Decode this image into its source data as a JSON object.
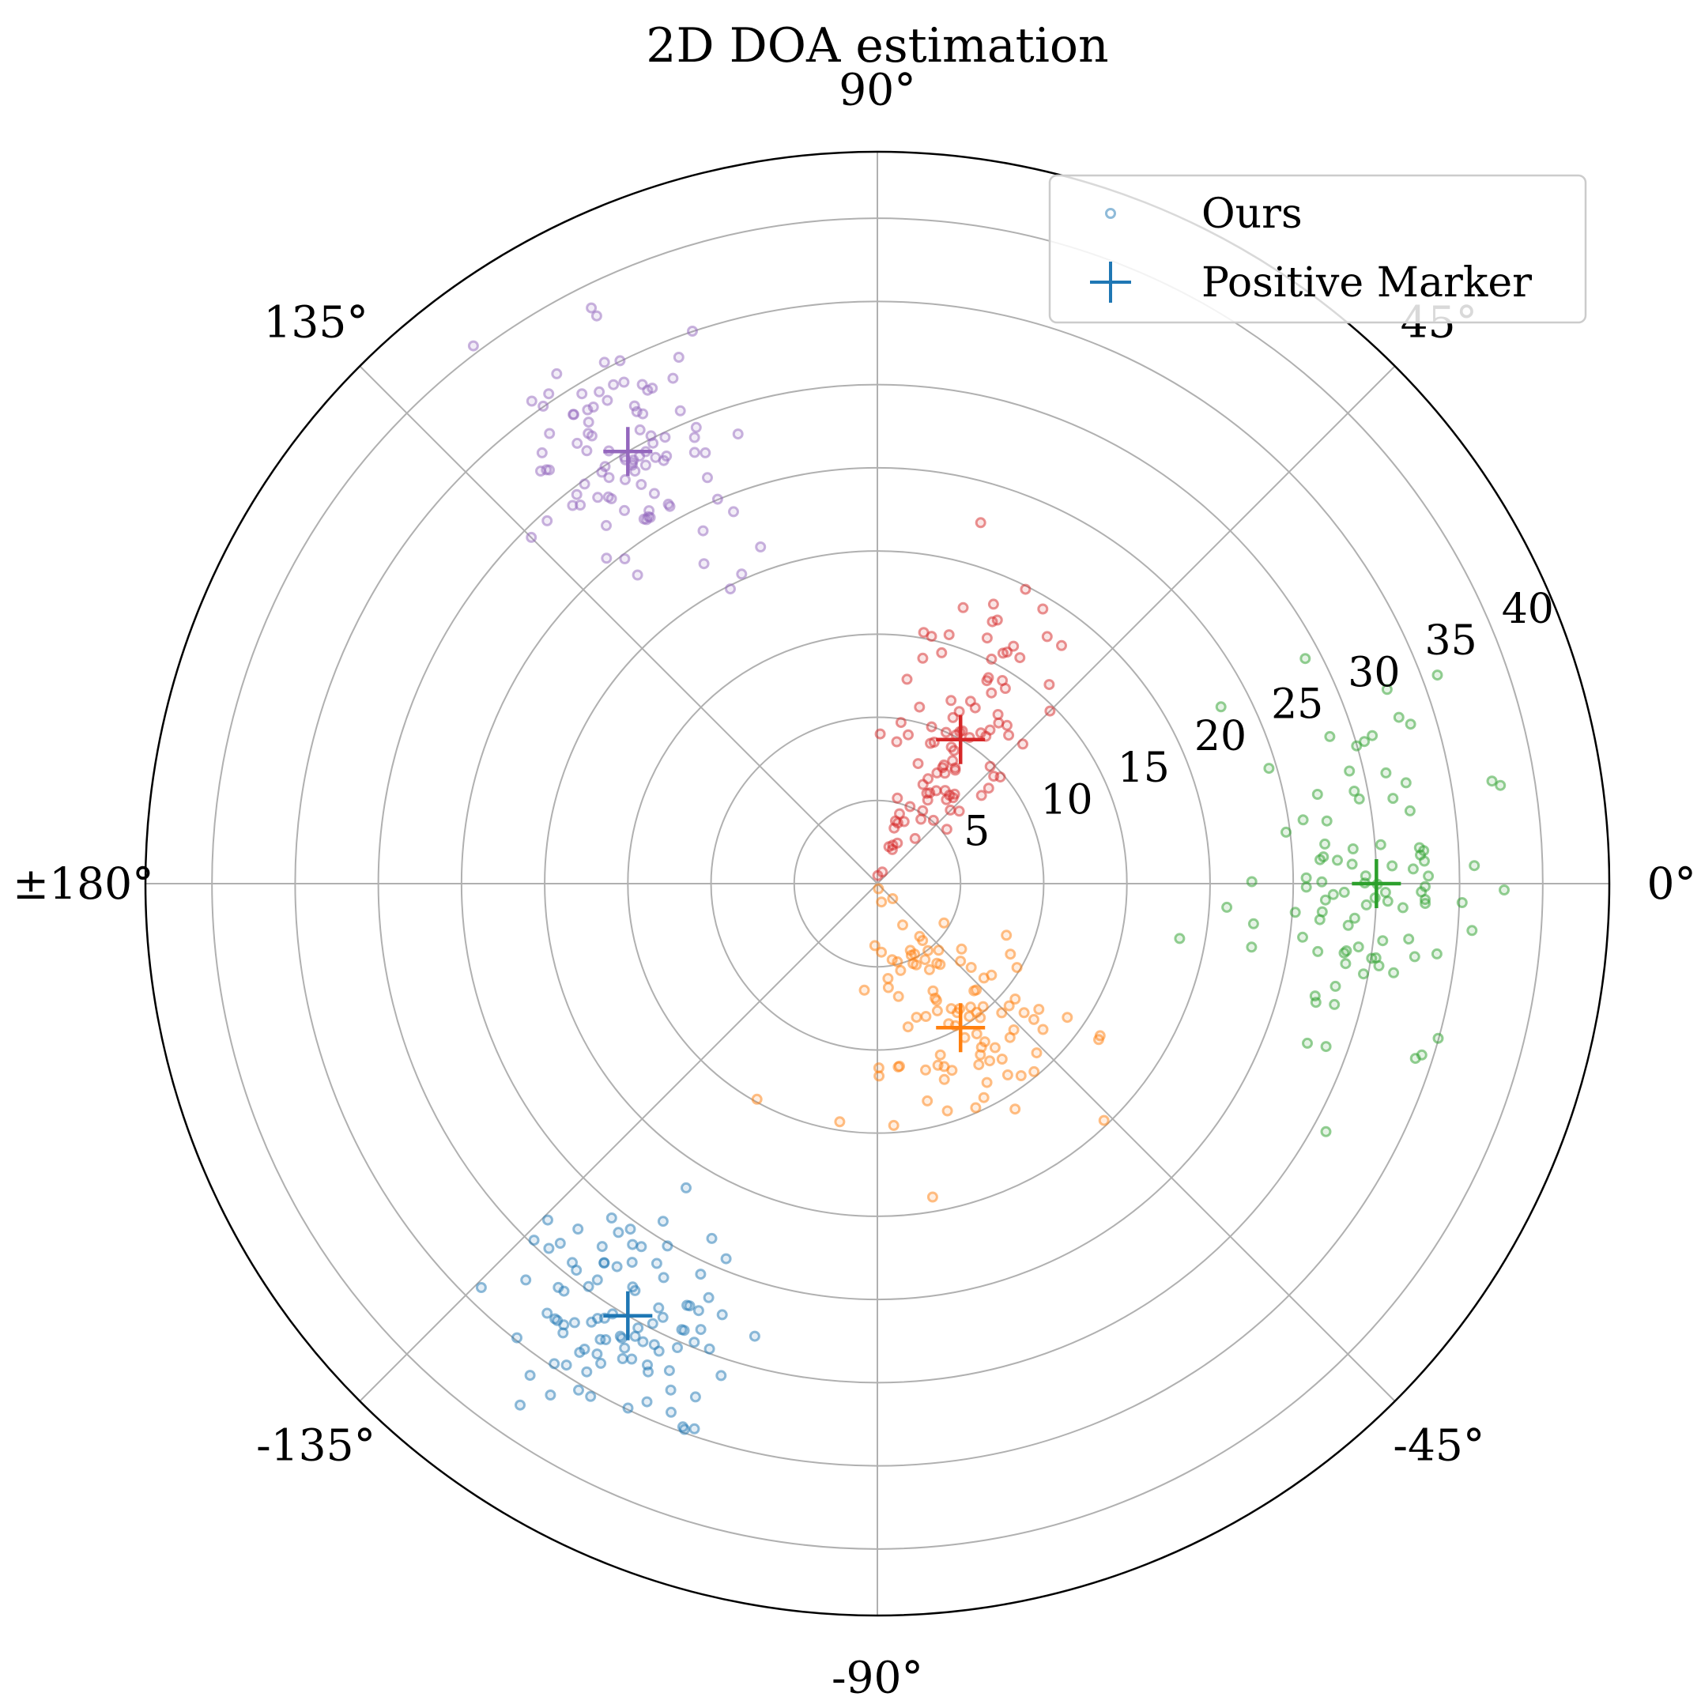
{
  "chart_data": {
    "type": "scatter",
    "projection": "polar",
    "title": "2D DOA estimation",
    "radial_ticks": [
      5,
      10,
      15,
      20,
      25,
      30,
      35,
      40
    ],
    "rlim": [
      0,
      44
    ],
    "angle_ticks": [
      0,
      45,
      90,
      135,
      180,
      -135,
      -90,
      -45
    ],
    "angle_tick_labels": [
      "0°",
      "45°",
      "90°",
      "135°",
      "±180°",
      "-135°",
      "-90°",
      "-45°"
    ],
    "grid": true,
    "legend": {
      "location": "top-right",
      "entries": [
        {
          "label": "Ours",
          "marker": "dot",
          "color": "#1f77b4"
        },
        {
          "label": "Positive Marker",
          "marker": "plus",
          "color": "#1f77b4"
        }
      ]
    },
    "clusters": [
      {
        "name": "cluster-1",
        "color": "#1f77b4",
        "marker_angle_deg": -120,
        "marker_r": 30,
        "scatter_count": 95,
        "spread_angle_deg": 7,
        "spread_r": 3.2
      },
      {
        "name": "cluster-2",
        "color": "#ff7f0e",
        "marker_angle_deg": -60,
        "marker_r": 10,
        "scatter_count": 100,
        "spread_angle_deg": 17,
        "spread_r": 4.2
      },
      {
        "name": "cluster-3",
        "color": "#2ca02c",
        "marker_angle_deg": 0,
        "marker_r": 30,
        "scatter_count": 95,
        "spread_angle_deg": 10,
        "spread_r": 3.4
      },
      {
        "name": "cluster-4",
        "color": "#d62728",
        "marker_angle_deg": 60,
        "marker_r": 10,
        "scatter_count": 100,
        "spread_angle_deg": 12,
        "spread_r": 4.2
      },
      {
        "name": "cluster-5",
        "color": "#9467bd",
        "marker_angle_deg": 120,
        "marker_r": 30,
        "scatter_count": 95,
        "spread_angle_deg": 6,
        "spread_r": 3.4
      }
    ]
  }
}
